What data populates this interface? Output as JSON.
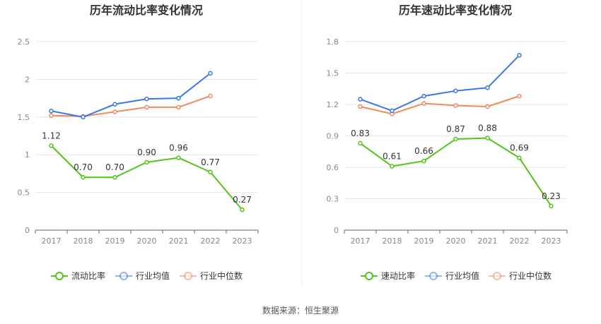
{
  "chart_data": [
    {
      "type": "line",
      "title": "历年流动比率变化情况",
      "categories": [
        "2017",
        "2018",
        "2019",
        "2020",
        "2021",
        "2022",
        "2023"
      ],
      "ylim": [
        0,
        2.5
      ],
      "yticks": [
        "0",
        "0.5",
        "1",
        "1.5",
        "2",
        "2.5"
      ],
      "grid": true,
      "legend_position": "bottom",
      "series": [
        {
          "name": "流动比率",
          "color": "#52c41a",
          "values": [
            1.12,
            0.7,
            0.7,
            0.9,
            0.96,
            0.77,
            0.27
          ],
          "labels": [
            "1.12",
            "0.70",
            "0.70",
            "0.90",
            "0.96",
            "0.77",
            "0.27"
          ]
        },
        {
          "name": "行业均值",
          "color": "#3b78e7",
          "values": [
            1.58,
            1.5,
            1.67,
            1.74,
            1.75,
            2.08,
            null
          ]
        },
        {
          "name": "行业中位数",
          "color": "#f08a5d",
          "values": [
            1.52,
            1.51,
            1.57,
            1.63,
            1.63,
            1.78,
            null
          ]
        }
      ]
    },
    {
      "type": "line",
      "title": "历年速动比率变化情况",
      "categories": [
        "2017",
        "2018",
        "2019",
        "2020",
        "2021",
        "2022",
        "2023"
      ],
      "ylim": [
        0,
        1.8
      ],
      "yticks": [
        "0",
        "0.3",
        "0.6",
        "0.9",
        "1.2",
        "1.5",
        "1.8"
      ],
      "grid": true,
      "legend_position": "bottom",
      "series": [
        {
          "name": "速动比率",
          "color": "#52c41a",
          "values": [
            0.83,
            0.61,
            0.66,
            0.87,
            0.88,
            0.69,
            0.23
          ],
          "labels": [
            "0.83",
            "0.61",
            "0.66",
            "0.87",
            "0.88",
            "0.69",
            "0.23"
          ]
        },
        {
          "name": "行业均值",
          "color": "#3b78e7",
          "values": [
            1.25,
            1.14,
            1.28,
            1.33,
            1.36,
            1.67,
            null
          ]
        },
        {
          "name": "行业中位数",
          "color": "#f08a5d",
          "values": [
            1.18,
            1.11,
            1.21,
            1.19,
            1.18,
            1.28,
            null
          ]
        }
      ]
    }
  ],
  "footer": {
    "source": "数据来源：恒生聚源"
  },
  "colors": {
    "grid": "#e6e6e6",
    "axis": "#666666",
    "tick_text": "#888888",
    "divider": "#eeeeee"
  }
}
